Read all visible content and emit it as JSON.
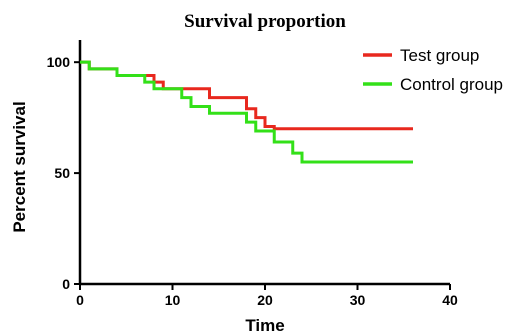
{
  "chart_data": {
    "type": "line",
    "step": true,
    "title": "Survival proportion",
    "xlabel": "Time",
    "ylabel": "Percent survival",
    "xlim": [
      0,
      40
    ],
    "ylim": [
      0,
      110
    ],
    "xticks": [
      0,
      10,
      20,
      30,
      40
    ],
    "yticks": [
      0,
      50,
      100
    ],
    "grid": false,
    "legend_position": "top-right",
    "series": [
      {
        "name": "Test group",
        "color": "#e8281e",
        "x": [
          0,
          1,
          4,
          8,
          9,
          14,
          18,
          19,
          20,
          21,
          36
        ],
        "y": [
          100,
          97,
          94,
          91,
          88,
          84,
          79,
          75,
          71,
          70,
          70
        ]
      },
      {
        "name": "Control group",
        "color": "#33e018",
        "x": [
          0,
          1,
          4,
          7,
          8,
          11,
          12,
          14,
          18,
          19,
          21,
          23,
          24,
          36
        ],
        "y": [
          100,
          97,
          94,
          91,
          88,
          84,
          80,
          77,
          73,
          69,
          64,
          59,
          55,
          55
        ]
      }
    ]
  }
}
